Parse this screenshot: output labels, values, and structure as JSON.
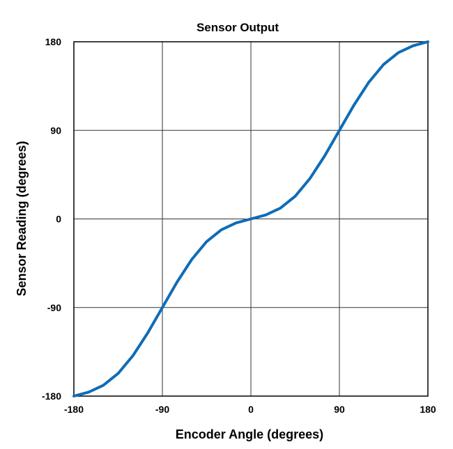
{
  "chart_data": {
    "type": "line",
    "title": "Sensor Output",
    "x_label": "Encoder Angle (degrees)",
    "y_label": "Sensor Reading (degrees)",
    "x": [
      -180,
      -165,
      -150,
      -135,
      -120,
      -105,
      -90,
      -75,
      -60,
      -45,
      -30,
      -15,
      0,
      15,
      30,
      45,
      60,
      75,
      90,
      105,
      120,
      135,
      150,
      165,
      180
    ],
    "series": [
      {
        "color": "#0f6cb6",
        "values": [
          -180,
          -176,
          -169,
          -157,
          -139,
          -116,
          -90,
          -64,
          -41,
          -23,
          -11,
          -4,
          0,
          4,
          11,
          23,
          41,
          64,
          90,
          116,
          139,
          157,
          169,
          176,
          180
        ]
      }
    ],
    "xlim": [
      -180,
      180
    ],
    "ylim": [
      -180,
      180
    ],
    "xticks": [
      -180,
      -90,
      0,
      90,
      180
    ],
    "yticks": [
      -180,
      -90,
      0,
      90,
      180
    ],
    "grid": true
  }
}
